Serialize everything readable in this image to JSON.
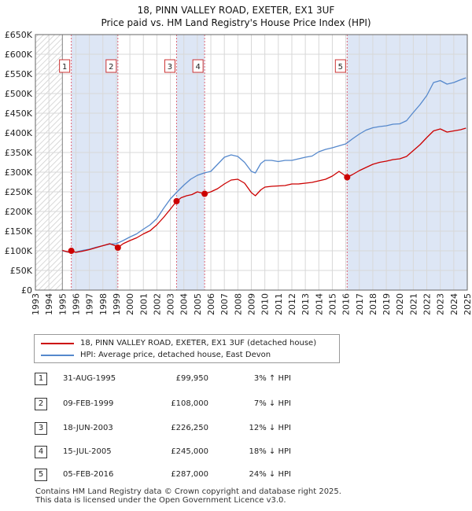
{
  "title": "18, PINN VALLEY ROAD, EXETER, EX1 3UF",
  "subtitle": "Price paid vs. HM Land Registry's House Price Index (HPI)",
  "colors": {
    "property": "#cc0000",
    "hpi": "#5588cc",
    "shade": "#dde6f5",
    "marker_line": "#dd6677"
  },
  "legend": [
    {
      "label": "18, PINN VALLEY ROAD, EXETER, EX1 3UF (detached house)",
      "color": "#cc0000"
    },
    {
      "label": "HPI: Average price, detached house, East Devon",
      "color": "#5588cc"
    }
  ],
  "sales": [
    {
      "num": "1",
      "date": "31-AUG-1995",
      "price": "£99,950",
      "hpi": "3% ↑ HPI"
    },
    {
      "num": "2",
      "date": "09-FEB-1999",
      "price": "£108,000",
      "hpi": "7% ↓ HPI"
    },
    {
      "num": "3",
      "date": "18-JUN-2003",
      "price": "£226,250",
      "hpi": "12% ↓ HPI"
    },
    {
      "num": "4",
      "date": "15-JUL-2005",
      "price": "£245,000",
      "hpi": "18% ↓ HPI"
    },
    {
      "num": "5",
      "date": "05-FEB-2016",
      "price": "£287,000",
      "hpi": "24% ↓ HPI"
    }
  ],
  "footer": [
    "Contains HM Land Registry data © Crown copyright and database right 2025.",
    "This data is licensed under the Open Government Licence v3.0."
  ],
  "chart_data": {
    "type": "line",
    "xlim": [
      1993,
      2025
    ],
    "ylim": [
      0,
      650000
    ],
    "grid": true,
    "x_tick_labels": [
      "1993",
      "1994",
      "1995",
      "1996",
      "1997",
      "1998",
      "1999",
      "2000",
      "2001",
      "2002",
      "2003",
      "2004",
      "2005",
      "2006",
      "2007",
      "2008",
      "2009",
      "2010",
      "2011",
      "2012",
      "2013",
      "2014",
      "2015",
      "2016",
      "2017",
      "2018",
      "2019",
      "2020",
      "2021",
      "2022",
      "2023",
      "2024",
      "2025"
    ],
    "y_ticks": [
      {
        "value": 0,
        "label": "£0"
      },
      {
        "value": 50000,
        "label": "£50K"
      },
      {
        "value": 100000,
        "label": "£100K"
      },
      {
        "value": 150000,
        "label": "£150K"
      },
      {
        "value": 200000,
        "label": "£200K"
      },
      {
        "value": 250000,
        "label": "£250K"
      },
      {
        "value": 300000,
        "label": "£300K"
      },
      {
        "value": 350000,
        "label": "£350K"
      },
      {
        "value": 400000,
        "label": "£400K"
      },
      {
        "value": 450000,
        "label": "£450K"
      },
      {
        "value": 500000,
        "label": "£500K"
      },
      {
        "value": 550000,
        "label": "£550K"
      },
      {
        "value": 600000,
        "label": "£600K"
      },
      {
        "value": 650000,
        "label": "£650K"
      }
    ],
    "data_start": 1995.0,
    "shaded_ranges": [
      [
        1995.66,
        1999.11
      ],
      [
        2003.46,
        2005.54
      ],
      [
        2016.1,
        2025
      ]
    ],
    "sale_markers": [
      {
        "label": "1",
        "x": 1995.66,
        "y": 99950
      },
      {
        "label": "2",
        "x": 1999.11,
        "y": 108000
      },
      {
        "label": "3",
        "x": 2003.46,
        "y": 226250
      },
      {
        "label": "4",
        "x": 2005.54,
        "y": 245000
      },
      {
        "label": "5",
        "x": 2016.1,
        "y": 287000
      }
    ],
    "series": [
      {
        "name": "HPI: Average price, detached house, East Devon",
        "x": [
          1995.0,
          1995.5,
          1996.0,
          1996.5,
          1997.0,
          1997.5,
          1998.0,
          1998.5,
          1999.0,
          1999.5,
          2000.0,
          2000.5,
          2001.0,
          2001.5,
          2002.0,
          2002.5,
          2003.0,
          2003.5,
          2004.0,
          2004.5,
          2005.0,
          2005.5,
          2006.0,
          2006.5,
          2007.0,
          2007.5,
          2008.0,
          2008.5,
          2009.0,
          2009.3,
          2009.7,
          2010.0,
          2010.5,
          2011.0,
          2011.5,
          2012.0,
          2012.5,
          2013.0,
          2013.5,
          2014.0,
          2014.5,
          2015.0,
          2015.5,
          2016.0,
          2016.5,
          2017.0,
          2017.5,
          2018.0,
          2018.5,
          2019.0,
          2019.5,
          2020.0,
          2020.5,
          2021.0,
          2021.5,
          2022.0,
          2022.5,
          2023.0,
          2023.5,
          2024.0,
          2024.5,
          2024.9
        ],
        "y": [
          100000,
          96000,
          97000,
          101000,
          104000,
          109000,
          113000,
          117000,
          118000,
          126000,
          135000,
          143000,
          155000,
          166000,
          182000,
          208000,
          232000,
          250000,
          267000,
          282000,
          292000,
          298000,
          302000,
          320000,
          338000,
          344000,
          340000,
          325000,
          302000,
          298000,
          322000,
          330000,
          330000,
          327000,
          330000,
          330000,
          334000,
          338000,
          341000,
          352000,
          358000,
          362000,
          367000,
          372000,
          385000,
          397000,
          407000,
          413000,
          416000,
          418000,
          422000,
          423000,
          431000,
          452000,
          472000,
          495000,
          528000,
          533000,
          524000,
          528000,
          535000,
          540000
        ]
      },
      {
        "name": "18, PINN VALLEY ROAD, EXETER, EX1 3UF (detached house)",
        "x": [
          1995.0,
          1995.4,
          1995.66,
          1996.0,
          1996.5,
          1997.0,
          1997.5,
          1998.0,
          1998.5,
          1999.0,
          1999.11,
          1999.5,
          2000.0,
          2000.5,
          2001.0,
          2001.5,
          2002.0,
          2002.5,
          2003.0,
          2003.46,
          2003.8,
          2004.2,
          2004.6,
          2005.0,
          2005.54,
          2006.0,
          2006.5,
          2007.0,
          2007.5,
          2008.0,
          2008.5,
          2009.0,
          2009.3,
          2009.7,
          2010.0,
          2010.5,
          2011.0,
          2011.5,
          2012.0,
          2012.5,
          2013.0,
          2013.5,
          2014.0,
          2014.5,
          2015.0,
          2015.5,
          2016.0,
          2016.1,
          2016.5,
          2017.0,
          2017.5,
          2018.0,
          2018.5,
          2019.0,
          2019.5,
          2020.0,
          2020.5,
          2021.0,
          2021.5,
          2022.0,
          2022.5,
          2023.0,
          2023.5,
          2024.0,
          2024.5,
          2024.9
        ],
        "y": [
          101000,
          97000,
          99950,
          96000,
          99000,
          103000,
          108000,
          113000,
          118000,
          112000,
          108000,
          118000,
          126000,
          133000,
          143000,
          151000,
          166000,
          185000,
          206000,
          226250,
          235000,
          240000,
          243000,
          250000,
          245000,
          250000,
          258000,
          270000,
          280000,
          282000,
          272000,
          248000,
          240000,
          255000,
          262000,
          264000,
          265000,
          266000,
          270000,
          270000,
          272000,
          274000,
          278000,
          282000,
          290000,
          302000,
          290000,
          287000,
          294000,
          304000,
          312000,
          320000,
          325000,
          328000,
          332000,
          334000,
          340000,
          355000,
          370000,
          388000,
          405000,
          410000,
          402000,
          405000,
          408000,
          412000
        ]
      }
    ]
  }
}
